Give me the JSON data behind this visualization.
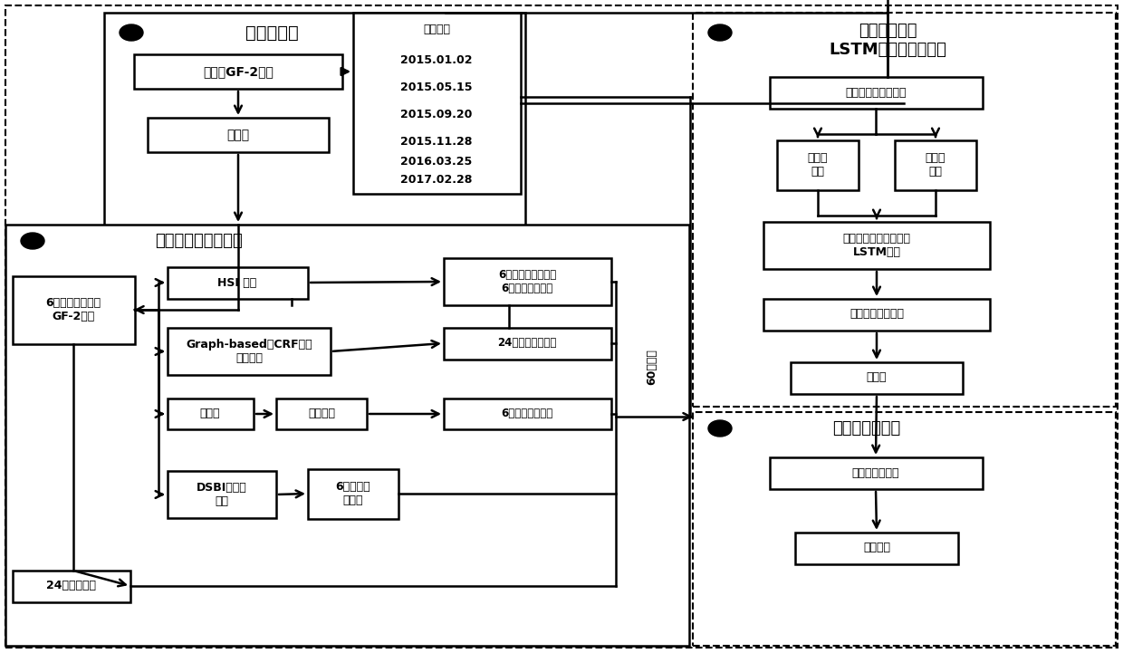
{
  "bg_color": "#ffffff",
  "box_color": "#ffffff",
  "box_edge_color": "#000000",
  "text_color": "#000000",
  "section1_title": "数据预处理",
  "section2_title": "多时相建筑特征提取",
  "section3_title1": "基于最佳单元",
  "section3_title2": "LSTM网络建筑物提取",
  "section4_title": "精度分析与讨论",
  "gf2_data": "多时相GF-2数据",
  "preprocess": "预处理",
  "obs_time": "观测时间\n2015.01.02\n2015.05.15\n2015.09.20\n2015.11.28\n2016.03.25\n2017.02.28",
  "gf2_6": "6景多时相预处理\nGF-2图像",
  "hsi": "HSI 变换",
  "graph_crf": "Graph-based与CRF结合\n分割图像",
  "grayscale": "灰度化",
  "wavelet": "小波变换",
  "dsbi": "DSBI建筑物\n指数",
  "feat6a": "6个饱和度特征波段\n6个亮度特征波段",
  "feat24shape": "24个形状特征波段",
  "feat6texture": "6个纹理特征波段",
  "feat6index": "6个指数特\n征波段",
  "feat24spectral": "24个光谱特征",
  "multitemp_feat": "多时相建筑物特征集",
  "building_sample": "建筑物\n样本",
  "building_label": "建筑物\n标签",
  "lstm_net": "最佳单元数量的多特征\nLSTM网络",
  "rough_extract": "建筑物粗提取结果",
  "postprocess": "后处理",
  "extract_result": "建筑物提取结果",
  "accuracy": "精度分析",
  "side_label": "60个波段"
}
